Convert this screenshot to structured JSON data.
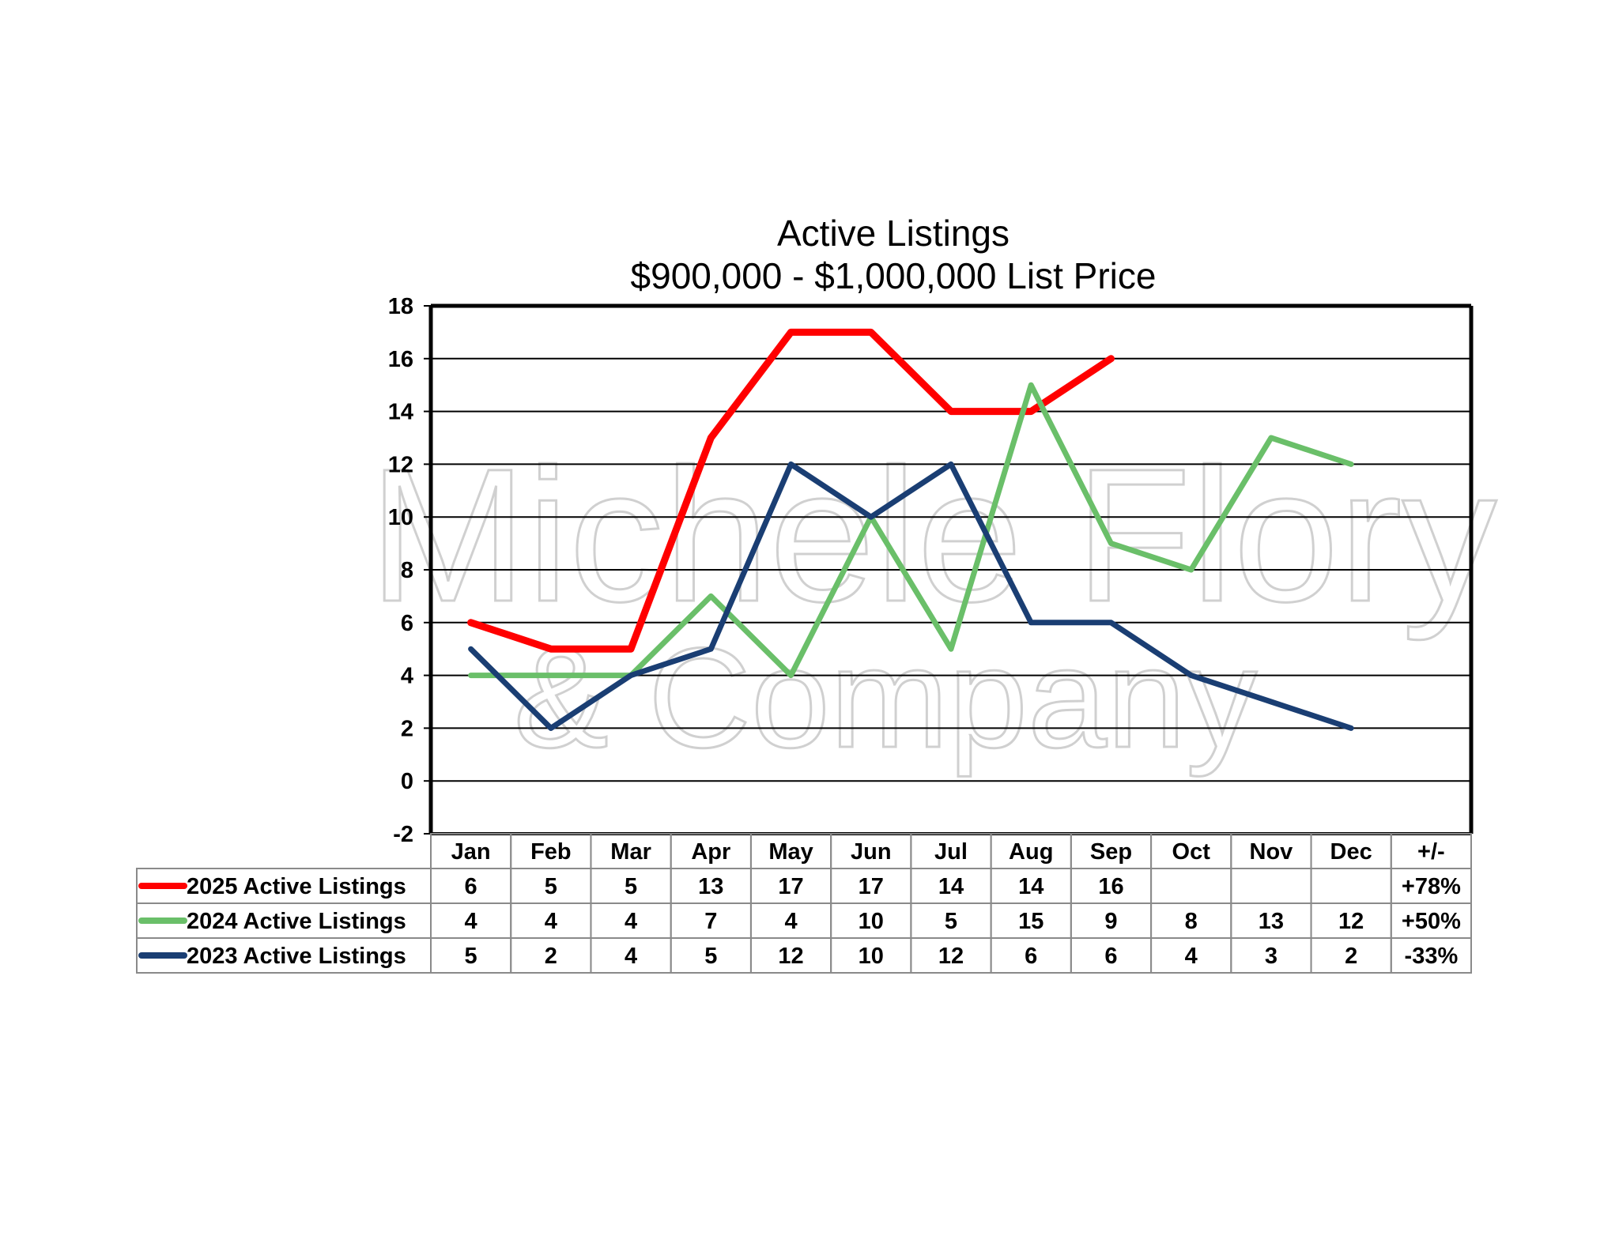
{
  "chart_data": {
    "type": "line",
    "title": "Active Listings",
    "subtitle": "$900,000 - $1,000,000 List Price",
    "watermark": [
      "Michele Flory",
      "& Company"
    ],
    "categories": [
      "Jan",
      "Feb",
      "Mar",
      "Apr",
      "May",
      "Jun",
      "Jul",
      "Aug",
      "Sep",
      "Oct",
      "Nov",
      "Dec"
    ],
    "change_header": "+/-",
    "ylim": [
      -2,
      18
    ],
    "yticks": [
      -2,
      0,
      2,
      4,
      6,
      8,
      10,
      12,
      14,
      16,
      18
    ],
    "grid": true,
    "legend": "table-below",
    "series": [
      {
        "name": "2025 Active Listings",
        "color": "#ff0000",
        "values": [
          6,
          5,
          5,
          13,
          17,
          17,
          14,
          14,
          16,
          null,
          null,
          null
        ],
        "change": "+78%"
      },
      {
        "name": "2024 Active Listings",
        "color": "#6abf69",
        "values": [
          4,
          4,
          4,
          7,
          4,
          10,
          5,
          15,
          9,
          8,
          13,
          12
        ],
        "change": "+50%"
      },
      {
        "name": "2023 Active Listings",
        "color": "#1a3e73",
        "values": [
          5,
          2,
          4,
          5,
          12,
          10,
          12,
          6,
          6,
          4,
          3,
          2
        ],
        "change": "-33%"
      }
    ]
  }
}
